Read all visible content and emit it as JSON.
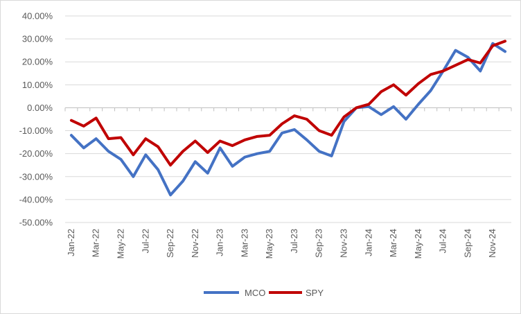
{
  "chart_data": {
    "type": "line",
    "title": "",
    "xlabel": "",
    "ylabel": "",
    "ylim": [
      -50,
      40
    ],
    "y_ticks": [
      40,
      30,
      20,
      10,
      0,
      -10,
      -20,
      -30,
      -40,
      -50
    ],
    "y_tick_labels": [
      "40.00%",
      "30.00%",
      "20.00%",
      "10.00%",
      "0.00%",
      "-10.00%",
      "-20.00%",
      "-30.00%",
      "-40.00%",
      "-50.00%"
    ],
    "x": [
      "Jan-22",
      "Feb-22",
      "Mar-22",
      "Apr-22",
      "May-22",
      "Jun-22",
      "Jul-22",
      "Aug-22",
      "Sep-22",
      "Oct-22",
      "Nov-22",
      "Dec-22",
      "Jan-23",
      "Feb-23",
      "Mar-23",
      "Apr-23",
      "May-23",
      "Jun-23",
      "Jul-23",
      "Aug-23",
      "Sep-23",
      "Oct-23",
      "Nov-23",
      "Dec-23",
      "Jan-24",
      "Feb-24",
      "Mar-24",
      "Apr-24",
      "May-24",
      "Jun-24",
      "Jul-24",
      "Aug-24",
      "Sep-24",
      "Oct-24",
      "Nov-24",
      "Dec-24"
    ],
    "x_tick_labels": [
      "Jan-22",
      "Mar-22",
      "May-22",
      "Jul-22",
      "Sep-22",
      "Nov-22",
      "Jan-23",
      "Mar-23",
      "May-23",
      "Jul-23",
      "Sep-23",
      "Nov-23",
      "Jan-24",
      "Mar-24",
      "May-24",
      "Jul-24",
      "Sep-24",
      "Nov-24"
    ],
    "series": [
      {
        "name": "MCO",
        "color": "#4472C4",
        "values": [
          -12,
          -17.5,
          -13.5,
          -19,
          -22.5,
          -30,
          -20.5,
          -27,
          -38,
          -32,
          -23.5,
          -28.5,
          -17.5,
          -25.5,
          -21.5,
          -20,
          -19,
          -11,
          -9.5,
          -14,
          -19,
          -21,
          -6,
          0,
          0.5,
          -3,
          0.5,
          -5,
          1.5,
          7.5,
          16,
          25,
          22,
          16,
          28,
          24.5
        ]
      },
      {
        "name": "SPY",
        "color": "#C00000",
        "values": [
          -5.5,
          -8,
          -4.5,
          -13.5,
          -13,
          -20.5,
          -13.5,
          -17,
          -25,
          -19,
          -14.5,
          -19.5,
          -14.5,
          -16.5,
          -14,
          -12.5,
          -12,
          -7,
          -3.5,
          -5,
          -10,
          -12,
          -4,
          0,
          1.5,
          7,
          10,
          5.5,
          10.5,
          14.5,
          16,
          18.5,
          21,
          19.5,
          27,
          29
        ]
      }
    ],
    "grid": true,
    "legend_position": "bottom"
  }
}
